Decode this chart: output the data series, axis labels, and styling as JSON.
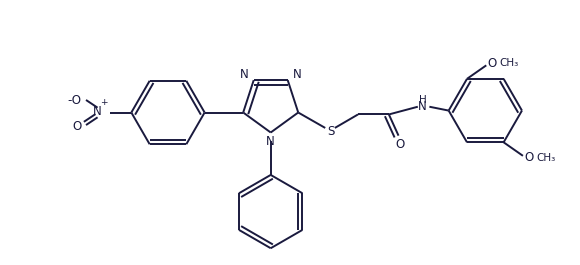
{
  "bg_color": "#ffffff",
  "line_color": "#1a1a3e",
  "line_width": 1.4,
  "font_size": 8.5,
  "fig_width": 5.8,
  "fig_height": 2.65,
  "dpi": 100,
  "xlim": [
    -2.8,
    3.2
  ],
  "ylim": [
    -1.4,
    1.1
  ]
}
